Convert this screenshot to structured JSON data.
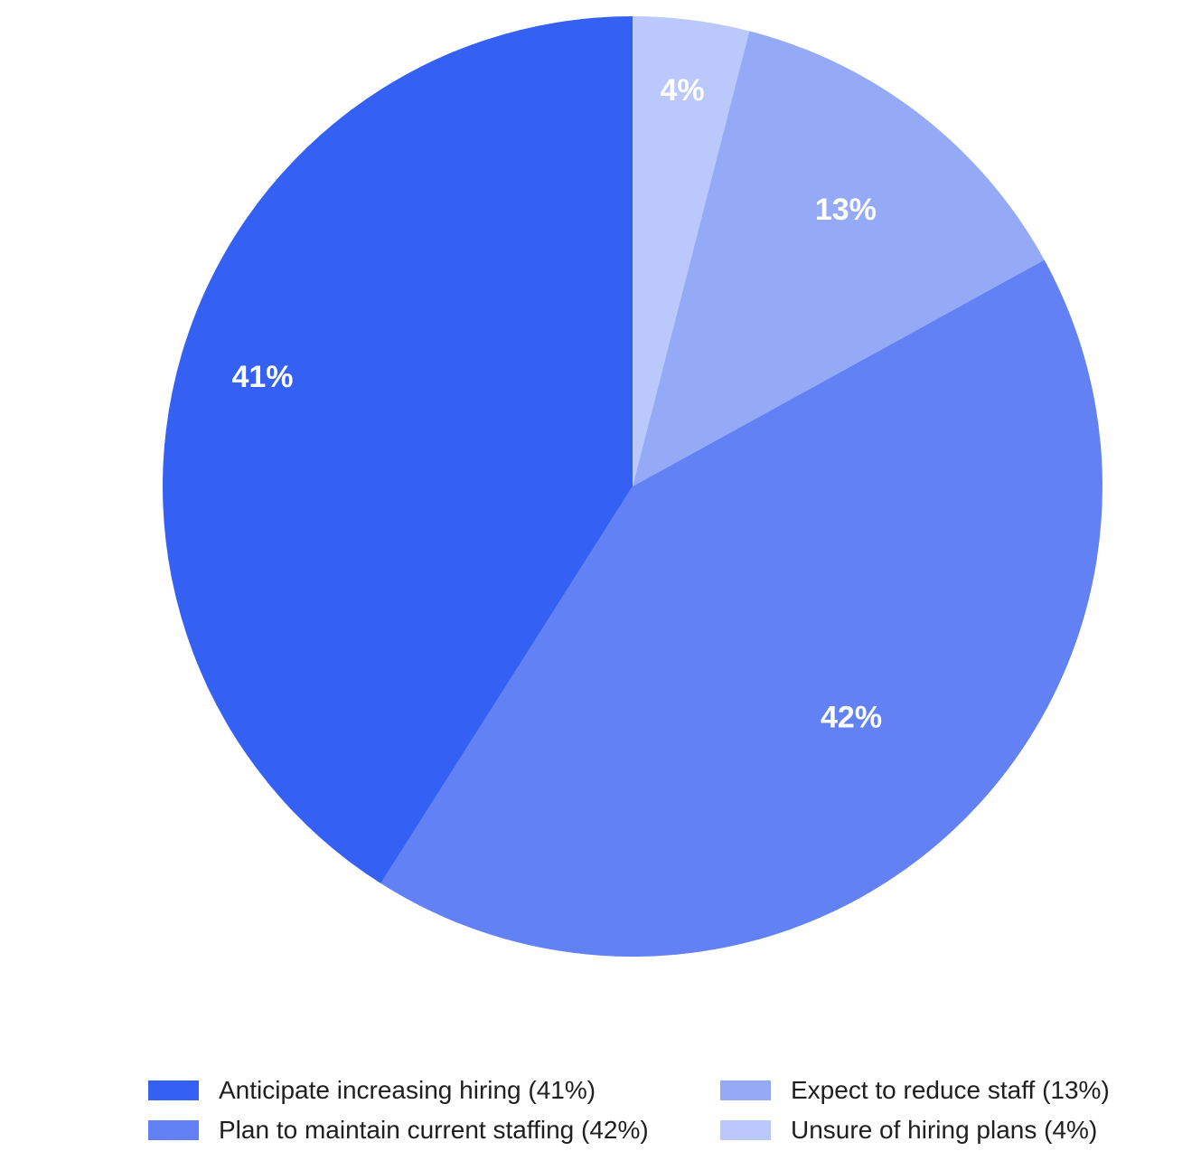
{
  "chart_data": {
    "type": "pie",
    "title": "",
    "start_angle_deg": 0,
    "direction": "clockwise_from_top",
    "slices": [
      {
        "label": "Unsure of hiring plans (4%)",
        "value": 4,
        "display": "4%",
        "color": "#BAC8FB"
      },
      {
        "label": "Expect to reduce staff (13%)",
        "value": 13,
        "display": "13%",
        "color": "#94AAF7"
      },
      {
        "label": "Plan to maintain current staffing (42%)",
        "value": 42,
        "display": "42%",
        "color": "#6181F4"
      },
      {
        "label": "Anticipate increasing hiring (41%)",
        "value": 41,
        "display": "41%",
        "color": "#3461F3"
      }
    ],
    "legend_placement": "bottom",
    "legend": [
      {
        "label": "Anticipate increasing hiring (41%)",
        "color": "#3461F3"
      },
      {
        "label": "Expect to reduce staff (13%)",
        "color": "#94AAF7"
      },
      {
        "label": "Plan to maintain current staffing (42%)",
        "color": "#6181F4"
      },
      {
        "label": "Unsure of hiring plans (4%)",
        "color": "#BAC8FB"
      }
    ]
  }
}
